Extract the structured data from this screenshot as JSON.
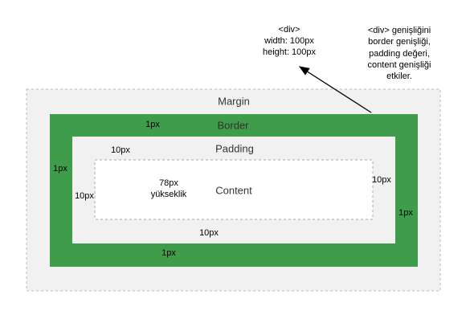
{
  "div_info": {
    "lines": [
      "<div>",
      "width: 100px",
      "height: 100px"
    ]
  },
  "note": {
    "lines": [
      "<div> genişliğini",
      "border genişliği,",
      "padding değeri,",
      "content genişliği",
      "etkiler."
    ]
  },
  "boxes": {
    "margin": "Margin",
    "border": "Border",
    "padding": "Padding",
    "content": "Content"
  },
  "border_labels": [
    "1px",
    "1px",
    "1px",
    "1px"
  ],
  "padding_labels": [
    "10px",
    "10px",
    "10px",
    "10px"
  ],
  "height_label": {
    "lines": [
      "78px",
      "yükseklik"
    ]
  }
}
